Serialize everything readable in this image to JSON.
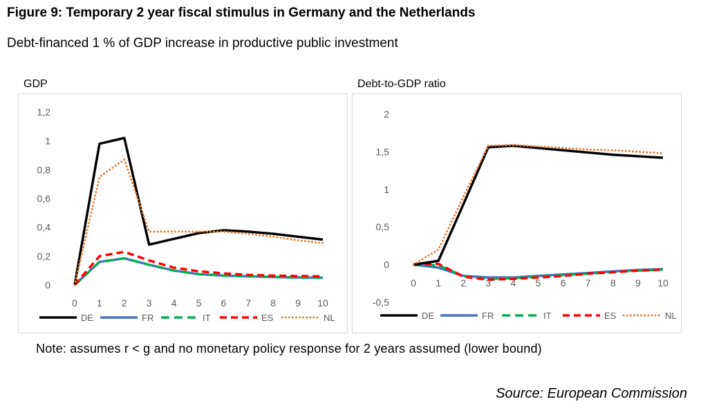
{
  "title": "Figure 9: Temporary 2 year fiscal stimulus in Germany and the Netherlands",
  "subtitle": "Debt-financed 1 % of GDP increase in productive public investment",
  "note": "Note: assumes r < g and no monetary policy response for 2 years assumed (lower bound)",
  "source": "Source: European Commission",
  "colors": {
    "DE": "#000000",
    "FR": "#4472c4",
    "IT": "#00b050",
    "ES": "#ff0000",
    "NL": "#ed7d31"
  },
  "chart_data": [
    {
      "type": "line",
      "title": "GDP",
      "x": [
        0,
        1,
        2,
        3,
        4,
        5,
        6,
        7,
        8,
        9,
        10
      ],
      "ylim": [
        0,
        1.2
      ],
      "yticks": [
        0,
        0.2,
        0.4,
        0.6,
        0.8,
        1,
        1.2
      ],
      "ytick_labels": [
        "0",
        "0,2",
        "0,4",
        "0,6",
        "0,8",
        "1",
        "1,2"
      ],
      "grid": false,
      "legend": "bottom",
      "series": [
        {
          "name": "DE",
          "values": [
            0,
            0.98,
            1.02,
            0.28,
            0.32,
            0.36,
            0.38,
            0.37,
            0.355,
            0.335,
            0.315
          ]
        },
        {
          "name": "FR",
          "values": [
            0,
            0.16,
            0.185,
            0.14,
            0.1,
            0.075,
            0.065,
            0.06,
            0.055,
            0.052,
            0.05
          ]
        },
        {
          "name": "IT",
          "values": [
            0,
            0.16,
            0.185,
            0.14,
            0.1,
            0.075,
            0.065,
            0.06,
            0.055,
            0.052,
            0.05
          ]
        },
        {
          "name": "ES",
          "values": [
            0,
            0.2,
            0.23,
            0.17,
            0.12,
            0.095,
            0.08,
            0.07,
            0.065,
            0.062,
            0.06
          ]
        },
        {
          "name": "NL",
          "values": [
            0,
            0.75,
            0.87,
            0.37,
            0.37,
            0.37,
            0.37,
            0.355,
            0.335,
            0.31,
            0.29
          ]
        }
      ]
    },
    {
      "type": "line",
      "title": "Debt-to-GDP ratio",
      "x": [
        0,
        1,
        2,
        3,
        4,
        5,
        6,
        7,
        8,
        9,
        10
      ],
      "ylim": [
        -0.5,
        2
      ],
      "yticks": [
        -0.5,
        0,
        0.5,
        1,
        1.5,
        2
      ],
      "ytick_labels": [
        "-0,5",
        "0",
        "0,5",
        "1",
        "1,5",
        "2"
      ],
      "grid": false,
      "legend": "bottom",
      "series": [
        {
          "name": "DE",
          "values": [
            0,
            0.05,
            0.8,
            1.56,
            1.58,
            1.55,
            1.52,
            1.49,
            1.46,
            1.44,
            1.42
          ]
        },
        {
          "name": "FR",
          "values": [
            0,
            -0.04,
            -0.15,
            -0.17,
            -0.17,
            -0.15,
            -0.13,
            -0.11,
            -0.09,
            -0.07,
            -0.06
          ]
        },
        {
          "name": "IT",
          "values": [
            0,
            -0.01,
            -0.15,
            -0.19,
            -0.18,
            -0.16,
            -0.14,
            -0.12,
            -0.1,
            -0.08,
            -0.065
          ]
        },
        {
          "name": "ES",
          "values": [
            0,
            0.01,
            -0.16,
            -0.2,
            -0.19,
            -0.17,
            -0.15,
            -0.12,
            -0.1,
            -0.08,
            -0.065
          ]
        },
        {
          "name": "NL",
          "values": [
            0,
            0.2,
            0.9,
            1.58,
            1.59,
            1.57,
            1.55,
            1.53,
            1.52,
            1.5,
            1.48
          ]
        }
      ]
    }
  ]
}
